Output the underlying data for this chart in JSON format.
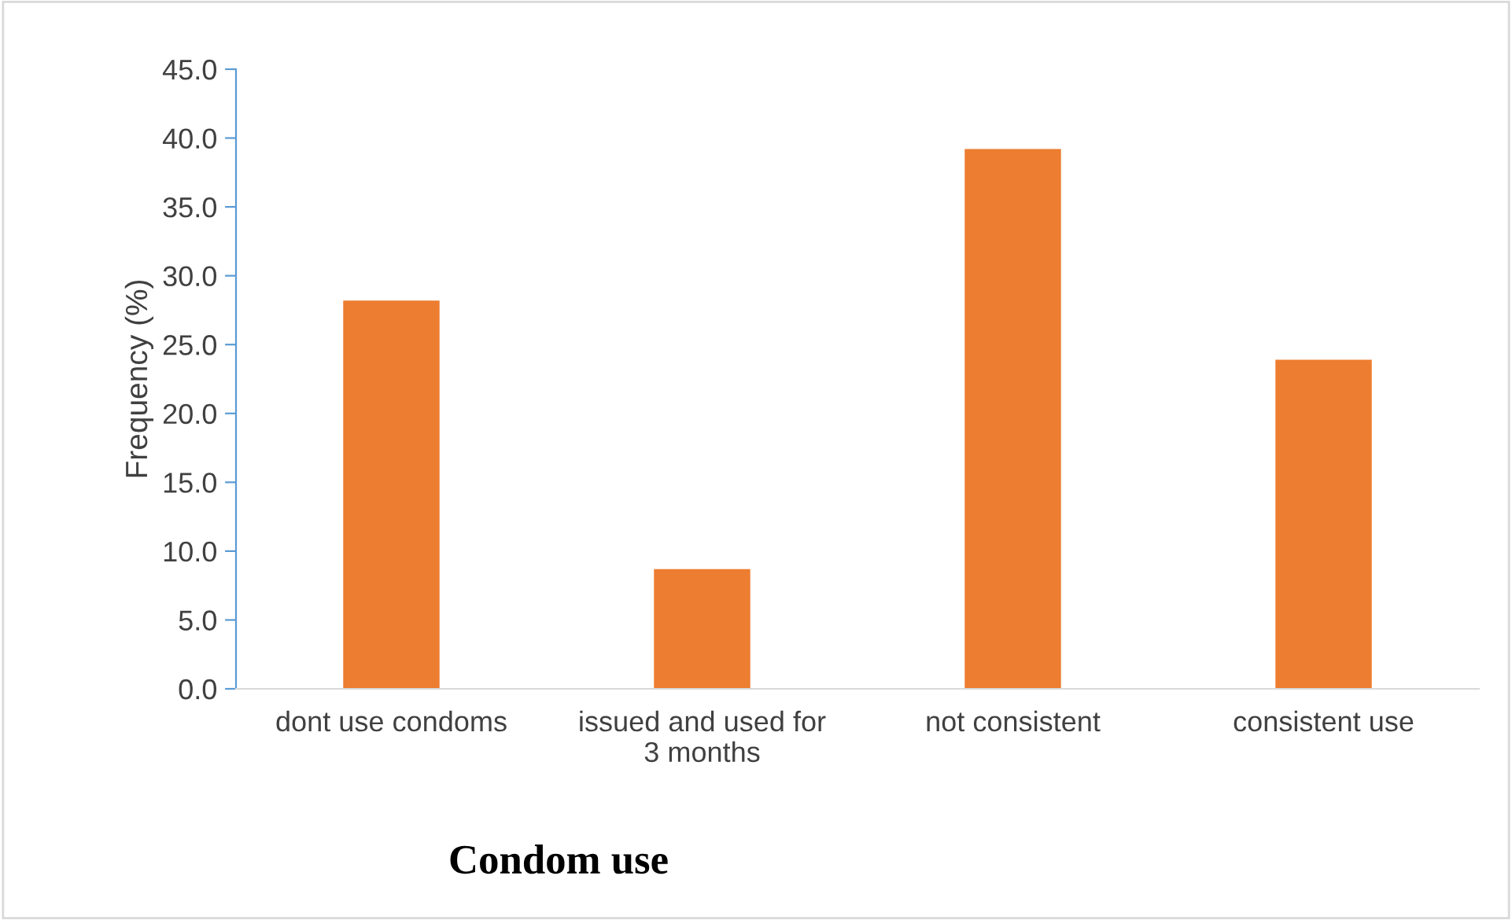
{
  "chart_data": {
    "type": "bar",
    "title": "Condom use",
    "ylabel": "Frequency (%)",
    "categories": [
      "dont use condoms",
      "issued and used for\n3 months",
      "not consistent",
      "consistent use"
    ],
    "values": [
      28.2,
      8.7,
      39.2,
      23.9
    ],
    "color": "#ed7d31",
    "ylim": [
      0,
      45
    ],
    "yticks": [
      {
        "value": 0,
        "label": "0.0"
      },
      {
        "value": 5,
        "label": "5.0"
      },
      {
        "value": 10,
        "label": "10.0"
      },
      {
        "value": 15,
        "label": "15.0"
      },
      {
        "value": 20,
        "label": "20.0"
      },
      {
        "value": 25,
        "label": "25.0"
      },
      {
        "value": 30,
        "label": "30.0"
      },
      {
        "value": 35,
        "label": "35.0"
      },
      {
        "value": 40,
        "label": "40.0"
      },
      {
        "value": 45,
        "label": "45.0"
      }
    ],
    "grid": false,
    "legend": false
  }
}
